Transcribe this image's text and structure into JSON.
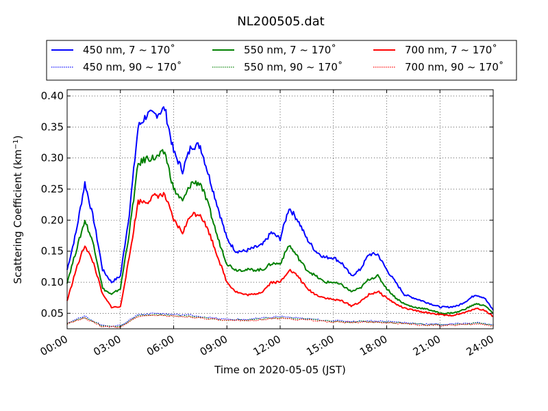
{
  "chart_data": {
    "type": "line",
    "title": "NL200505.dat",
    "xlabel": "Time on 2020-05-05 (JST)",
    "ylabel": "Scattering Coefficient (km",
    "ylabel_sup": "−1",
    "ylabel_close": ")",
    "xlim": [
      0,
      24
    ],
    "ylim": [
      0.025,
      0.41
    ],
    "x_ticks": [
      0,
      3,
      6,
      9,
      12,
      15,
      18,
      21,
      24
    ],
    "x_tick_labels": [
      "00:00",
      "03:00",
      "06:00",
      "09:00",
      "12:00",
      "15:00",
      "18:00",
      "21:00",
      "24:00"
    ],
    "y_ticks": [
      0.05,
      0.1,
      0.15,
      0.2,
      0.25,
      0.3,
      0.35,
      0.4
    ],
    "y_tick_labels": [
      "0.05",
      "0.10",
      "0.15",
      "0.20",
      "0.25",
      "0.30",
      "0.35",
      "0.40"
    ],
    "grid": true,
    "legend_position": "top",
    "series": [
      {
        "name": "450 nm, 7 ~ 170˚",
        "color": "#0000ff",
        "style": "solid",
        "x": [
          0,
          0.5,
          1,
          1.5,
          2,
          2.5,
          3,
          3.5,
          4,
          4.5,
          5,
          5.5,
          6,
          6.5,
          7,
          7.5,
          8,
          8.5,
          9,
          9.5,
          10,
          10.5,
          11,
          11.5,
          12,
          12.5,
          13,
          13.5,
          14,
          14.5,
          15,
          15.5,
          16,
          16.5,
          17,
          17.5,
          18,
          18.5,
          19,
          19.5,
          20,
          20.5,
          21,
          21.5,
          22,
          22.5,
          23,
          23.5,
          24
        ],
        "y": [
          0.12,
          0.18,
          0.26,
          0.2,
          0.12,
          0.1,
          0.11,
          0.21,
          0.35,
          0.37,
          0.37,
          0.38,
          0.31,
          0.28,
          0.32,
          0.32,
          0.27,
          0.22,
          0.17,
          0.15,
          0.15,
          0.155,
          0.16,
          0.18,
          0.17,
          0.22,
          0.2,
          0.17,
          0.15,
          0.14,
          0.14,
          0.13,
          0.11,
          0.12,
          0.145,
          0.145,
          0.12,
          0.1,
          0.08,
          0.075,
          0.07,
          0.065,
          0.06,
          0.06,
          0.062,
          0.07,
          0.08,
          0.075,
          0.055
        ]
      },
      {
        "name": "550 nm, 7 ~ 170˚",
        "color": "#008000",
        "style": "solid",
        "x": [
          0,
          0.5,
          1,
          1.5,
          2,
          2.5,
          3,
          3.5,
          4,
          4.5,
          5,
          5.5,
          6,
          6.5,
          7,
          7.5,
          8,
          8.5,
          9,
          9.5,
          10,
          10.5,
          11,
          11.5,
          12,
          12.5,
          13,
          13.5,
          14,
          14.5,
          15,
          15.5,
          16,
          16.5,
          17,
          17.5,
          18,
          18.5,
          19,
          19.5,
          20,
          20.5,
          21,
          21.5,
          22,
          22.5,
          23,
          23.5,
          24
        ],
        "y": [
          0.1,
          0.15,
          0.2,
          0.16,
          0.09,
          0.08,
          0.09,
          0.18,
          0.29,
          0.3,
          0.3,
          0.31,
          0.25,
          0.23,
          0.26,
          0.26,
          0.22,
          0.17,
          0.13,
          0.12,
          0.12,
          0.12,
          0.12,
          0.13,
          0.13,
          0.16,
          0.14,
          0.12,
          0.11,
          0.1,
          0.1,
          0.095,
          0.085,
          0.09,
          0.105,
          0.11,
          0.09,
          0.075,
          0.065,
          0.06,
          0.058,
          0.055,
          0.05,
          0.05,
          0.052,
          0.058,
          0.065,
          0.063,
          0.05
        ]
      },
      {
        "name": "700 nm, 7 ~ 170˚",
        "color": "#ff0000",
        "style": "solid",
        "x": [
          0,
          0.5,
          1,
          1.5,
          2,
          2.5,
          3,
          3.5,
          4,
          4.5,
          5,
          5.5,
          6,
          6.5,
          7,
          7.5,
          8,
          8.5,
          9,
          9.5,
          10,
          10.5,
          11,
          11.5,
          12,
          12.5,
          13,
          13.5,
          14,
          14.5,
          15,
          15.5,
          16,
          16.5,
          17,
          17.5,
          18,
          18.5,
          19,
          19.5,
          20,
          20.5,
          21,
          21.5,
          22,
          22.5,
          23,
          23.5,
          24
        ],
        "y": [
          0.07,
          0.12,
          0.16,
          0.13,
          0.08,
          0.06,
          0.06,
          0.14,
          0.23,
          0.23,
          0.24,
          0.24,
          0.2,
          0.18,
          0.21,
          0.21,
          0.18,
          0.14,
          0.1,
          0.085,
          0.08,
          0.08,
          0.085,
          0.1,
          0.1,
          0.12,
          0.11,
          0.09,
          0.08,
          0.075,
          0.072,
          0.07,
          0.062,
          0.068,
          0.08,
          0.085,
          0.075,
          0.065,
          0.058,
          0.055,
          0.052,
          0.05,
          0.048,
          0.046,
          0.048,
          0.052,
          0.058,
          0.055,
          0.045
        ]
      },
      {
        "name": "450 nm, 90 ~ 170˚",
        "color": "#0000ff",
        "style": "dotted",
        "x": [
          0,
          1,
          2,
          3,
          4,
          5,
          6,
          7,
          8,
          9,
          10,
          11,
          12,
          13,
          14,
          15,
          16,
          17,
          18,
          19,
          20,
          21,
          22,
          23,
          24
        ],
        "y": [
          0.035,
          0.045,
          0.03,
          0.03,
          0.048,
          0.05,
          0.048,
          0.047,
          0.043,
          0.04,
          0.04,
          0.042,
          0.045,
          0.042,
          0.04,
          0.038,
          0.037,
          0.038,
          0.037,
          0.035,
          0.033,
          0.032,
          0.033,
          0.035,
          0.032
        ]
      },
      {
        "name": "550 nm, 90 ~ 170˚",
        "color": "#008000",
        "style": "dotted",
        "x": [
          0,
          1,
          2,
          3,
          4,
          5,
          6,
          7,
          8,
          9,
          10,
          11,
          12,
          13,
          14,
          15,
          16,
          17,
          18,
          19,
          20,
          21,
          22,
          23,
          24
        ],
        "y": [
          0.034,
          0.043,
          0.029,
          0.029,
          0.046,
          0.048,
          0.046,
          0.045,
          0.042,
          0.039,
          0.039,
          0.041,
          0.043,
          0.041,
          0.039,
          0.037,
          0.036,
          0.037,
          0.036,
          0.034,
          0.032,
          0.031,
          0.032,
          0.034,
          0.031
        ]
      },
      {
        "name": "700 nm, 90 ~ 170˚",
        "color": "#ff0000",
        "style": "dotted",
        "x": [
          0,
          1,
          2,
          3,
          4,
          5,
          6,
          7,
          8,
          9,
          10,
          11,
          12,
          13,
          14,
          15,
          16,
          17,
          18,
          19,
          20,
          21,
          22,
          23,
          24
        ],
        "y": [
          0.033,
          0.042,
          0.028,
          0.028,
          0.045,
          0.047,
          0.045,
          0.044,
          0.041,
          0.038,
          0.038,
          0.04,
          0.042,
          0.04,
          0.038,
          0.036,
          0.035,
          0.036,
          0.035,
          0.033,
          0.031,
          0.03,
          0.031,
          0.033,
          0.03
        ]
      }
    ]
  }
}
